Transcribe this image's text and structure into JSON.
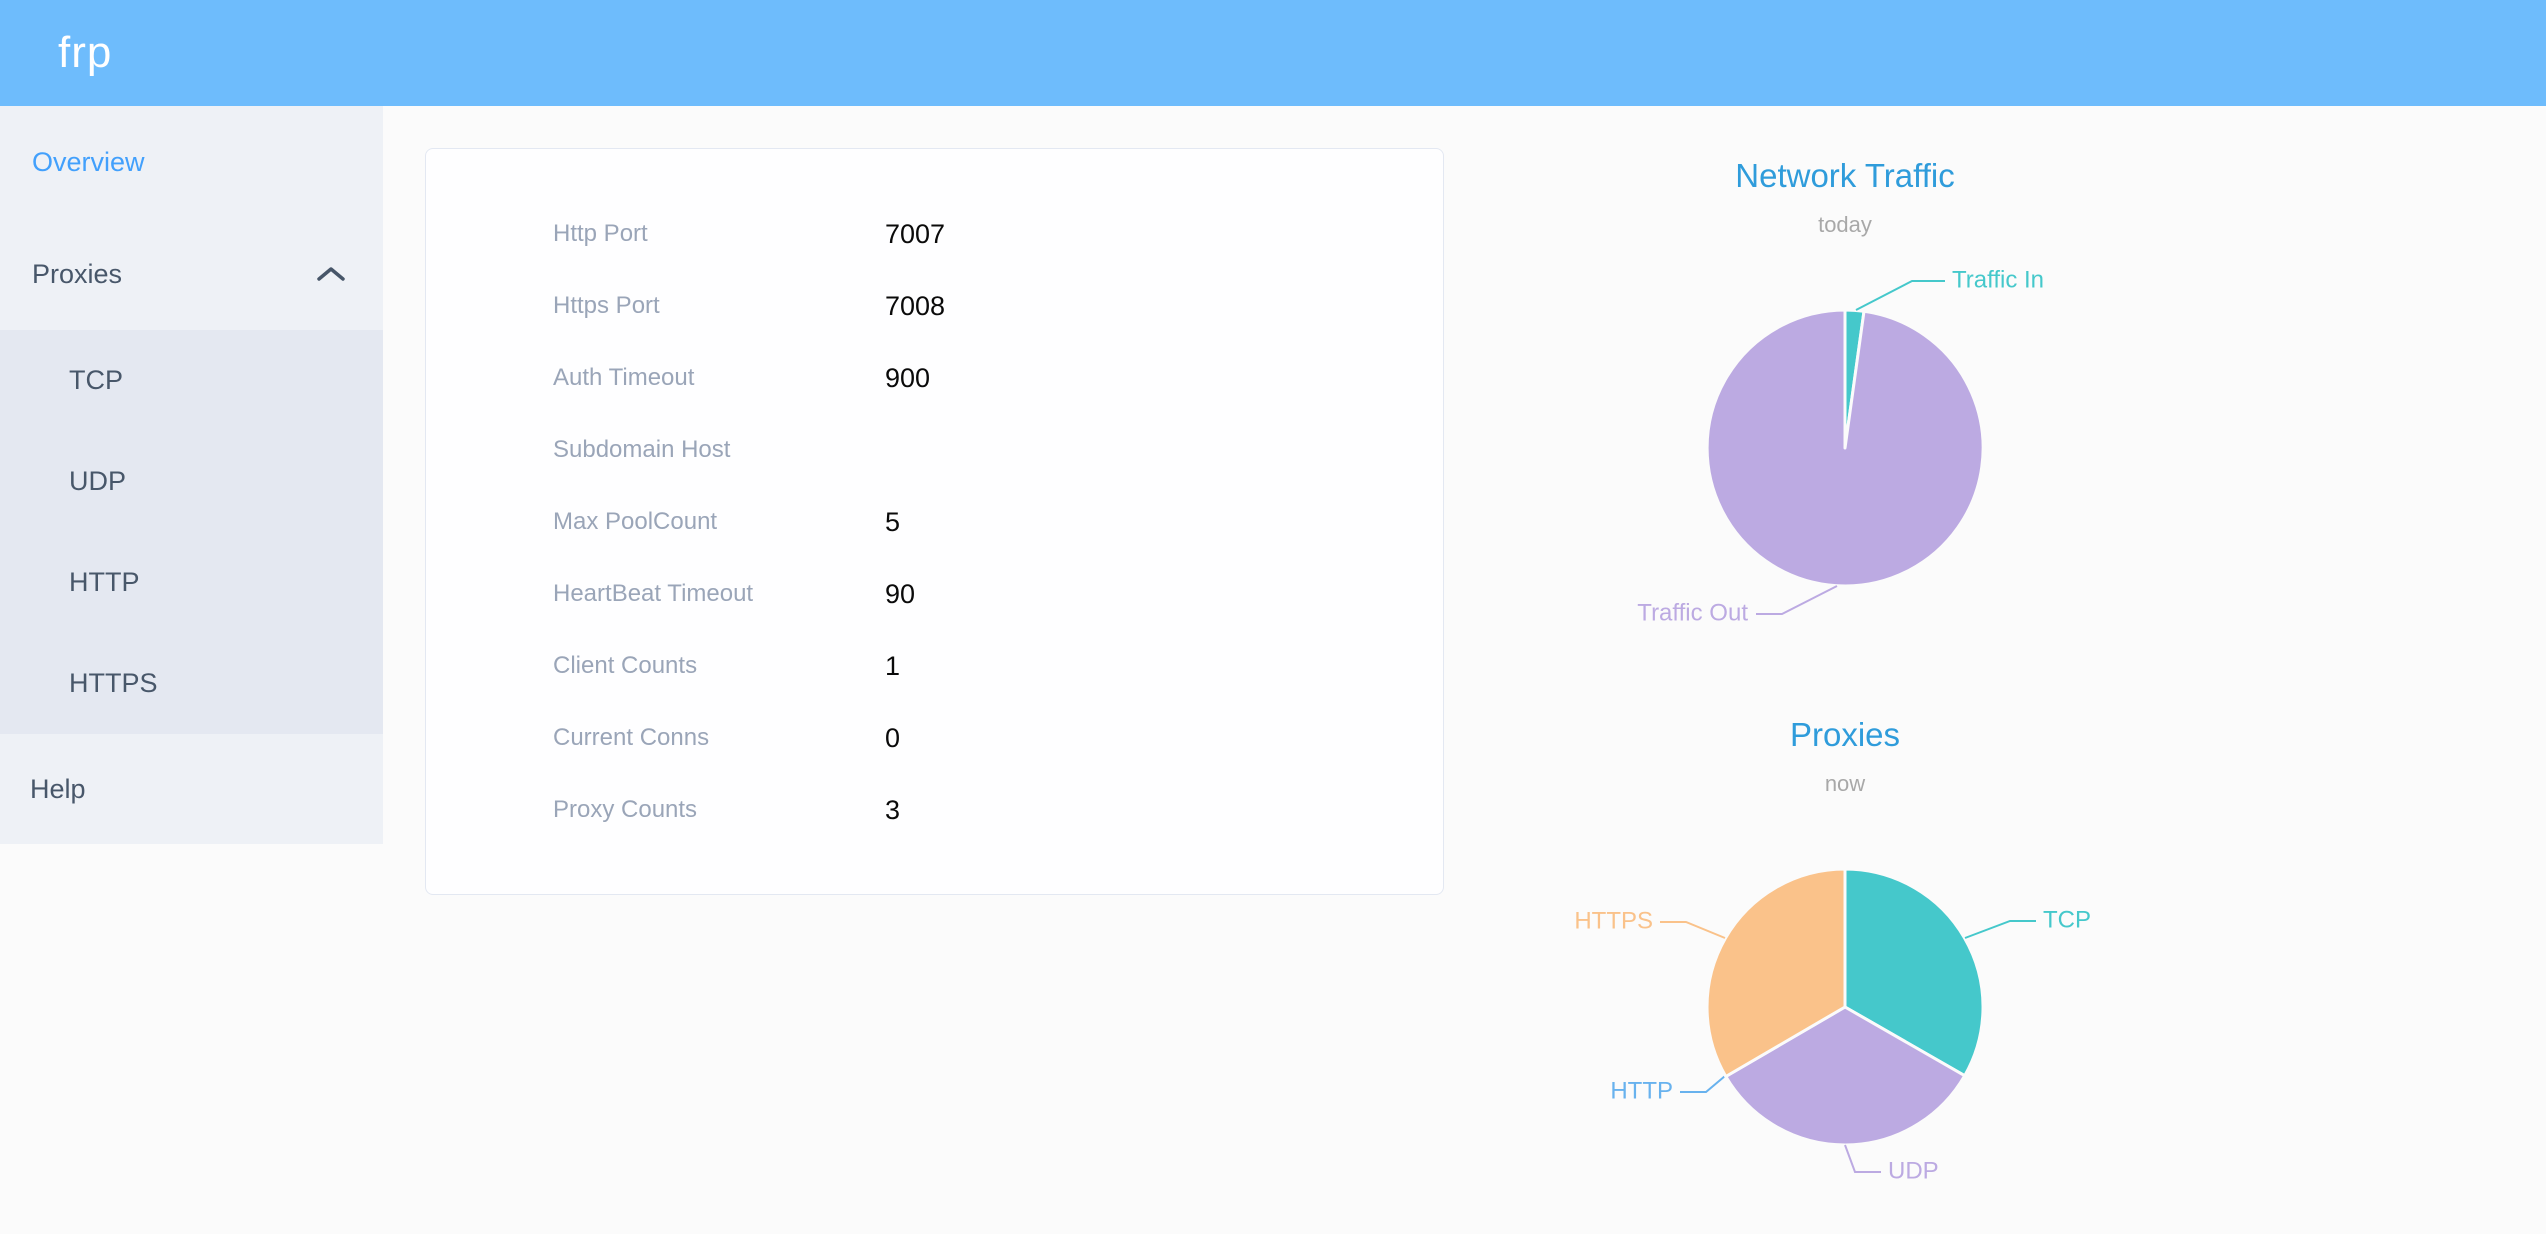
{
  "header": {
    "logo": "frp"
  },
  "sidebar": {
    "items": [
      {
        "label": "Overview",
        "active": true
      },
      {
        "label": "Proxies",
        "expanded": true,
        "children": [
          "TCP",
          "UDP",
          "HTTP",
          "HTTPS"
        ]
      },
      {
        "label": "Help"
      }
    ]
  },
  "overview_panel": {
    "rows": [
      {
        "label": "Http Port",
        "value": "7007"
      },
      {
        "label": "Https Port",
        "value": "7008"
      },
      {
        "label": "Auth Timeout",
        "value": "900"
      },
      {
        "label": "Subdomain Host",
        "value": ""
      },
      {
        "label": "Max PoolCount",
        "value": "5"
      },
      {
        "label": "HeartBeat Timeout",
        "value": "90"
      },
      {
        "label": "Client Counts",
        "value": "1"
      },
      {
        "label": "Current Conns",
        "value": "0"
      },
      {
        "label": "Proxy Counts",
        "value": "3"
      }
    ]
  },
  "chart_data": [
    {
      "type": "pie",
      "title": "Network Traffic",
      "subtitle": "today",
      "label_position": "outside",
      "legend": "none",
      "slices": [
        {
          "label": "Traffic In",
          "pct": 2.2,
          "color": "#45c8cb"
        },
        {
          "label": "Traffic Out",
          "pct": 97.8,
          "color": "#bcaae2"
        }
      ]
    },
    {
      "type": "pie",
      "title": "Proxies",
      "subtitle": "now",
      "label_position": "outside",
      "legend": "none",
      "slices": [
        {
          "label": "TCP",
          "count": 1,
          "pct": 33.3,
          "color": "#45c8cb"
        },
        {
          "label": "UDP",
          "count": 1,
          "pct": 33.3,
          "color": "#bcaae2"
        },
        {
          "label": "HTTP",
          "count": 0,
          "pct": 0,
          "color": "#68b2ee"
        },
        {
          "label": "HTTPS",
          "count": 1,
          "pct": 33.4,
          "color": "#fac28a"
        }
      ]
    }
  ],
  "colors": {
    "header_bg": "#6ebcfc",
    "sidebar_bg": "#eef1f6",
    "submenu_bg": "#e4e8f1",
    "sidebar_text": "#48576a",
    "active_link": "#42a0fc",
    "page_bg": "#fbfbfb",
    "card_border": "#e3e8f2",
    "label_gray": "#9aa5b8",
    "value_black": "#0a0a0a",
    "chart_title_blue": "#2f9cdb",
    "chart_subtitle_gray": "#a8a8a8"
  }
}
